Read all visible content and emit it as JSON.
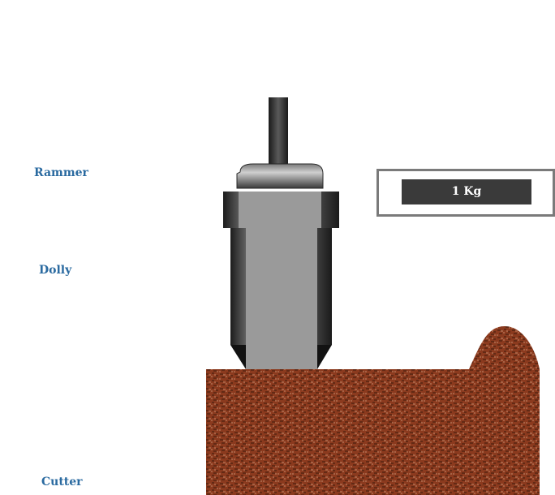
{
  "labels": {
    "rammer": "Rammer",
    "dolly": "Dolly",
    "cutter": "Cutter"
  },
  "weight": {
    "value": "1 Kg"
  },
  "colors": {
    "label_text": "#2a6aa0",
    "soil": "#8b3a1e",
    "soil_dark": "#3b1a0c",
    "soil_light": "#c0886a",
    "metal_dark": "#262626",
    "metal_mid": "#9a9a9a",
    "display_bg": "#3a3a3a",
    "panel_border": "#7a7a7a"
  }
}
